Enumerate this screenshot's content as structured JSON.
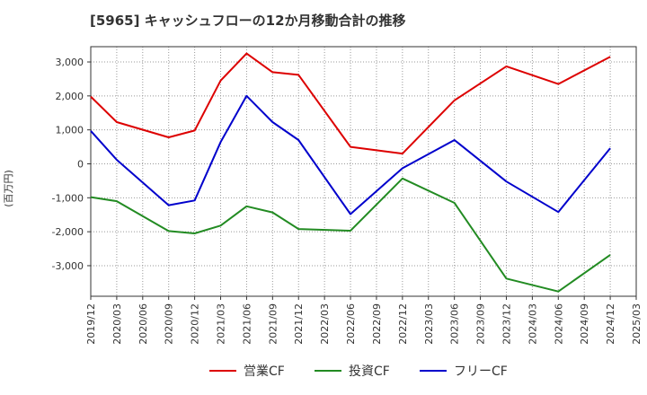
{
  "chart_data": {
    "type": "line",
    "title": "[5965]  キャッシュフローの12か月移動合計の推移",
    "ylabel": "(百万円)",
    "xlabel": "",
    "ylim": [
      -3900,
      3450
    ],
    "yticks": [
      3000,
      2000,
      1000,
      0,
      -1000,
      -2000,
      -3000
    ],
    "ytick_labels": [
      "3,000",
      "2,000",
      "1,000",
      "0",
      "-1,000",
      "-2,000",
      "-3,000"
    ],
    "x_ticks": [
      "2019/12",
      "2020/03",
      "2020/06",
      "2020/09",
      "2020/12",
      "2021/03",
      "2021/06",
      "2021/09",
      "2021/12",
      "2022/03",
      "2022/06",
      "2022/09",
      "2022/12",
      "2023/03",
      "2023/06",
      "2023/09",
      "2023/12",
      "2024/03",
      "2024/06",
      "2024/09",
      "2024/12",
      "2025/03"
    ],
    "series": [
      {
        "name": "営業CF",
        "color": "#dd0000",
        "x": [
          "2019/12",
          "2020/03",
          "2020/09",
          "2020/12",
          "2021/03",
          "2021/06",
          "2021/09",
          "2021/12",
          "2022/06",
          "2022/12",
          "2023/06",
          "2023/12",
          "2024/06",
          "2024/12"
        ],
        "values": [
          1980,
          1230,
          780,
          980,
          2450,
          3250,
          2700,
          2620,
          500,
          300,
          1870,
          2870,
          2350,
          3150
        ]
      },
      {
        "name": "投資CF",
        "color": "#228b22",
        "x": [
          "2019/12",
          "2020/03",
          "2020/09",
          "2020/12",
          "2021/03",
          "2021/06",
          "2021/09",
          "2021/12",
          "2022/06",
          "2022/12",
          "2023/06",
          "2023/12",
          "2024/06",
          "2024/12"
        ],
        "values": [
          -980,
          -1100,
          -1980,
          -2050,
          -1820,
          -1250,
          -1430,
          -1920,
          -1970,
          -430,
          -1150,
          -3380,
          -3760,
          -2680
        ]
      },
      {
        "name": "フリーCF",
        "color": "#0000cc",
        "x": [
          "2019/12",
          "2020/03",
          "2020/09",
          "2020/12",
          "2021/03",
          "2021/06",
          "2021/09",
          "2021/12",
          "2022/06",
          "2022/12",
          "2023/06",
          "2023/12",
          "2024/06",
          "2024/12"
        ],
        "values": [
          970,
          120,
          -1220,
          -1080,
          640,
          2000,
          1230,
          700,
          -1480,
          -130,
          700,
          -520,
          -1420,
          460
        ]
      }
    ],
    "grid": true,
    "legend_position": "bottom-center"
  }
}
